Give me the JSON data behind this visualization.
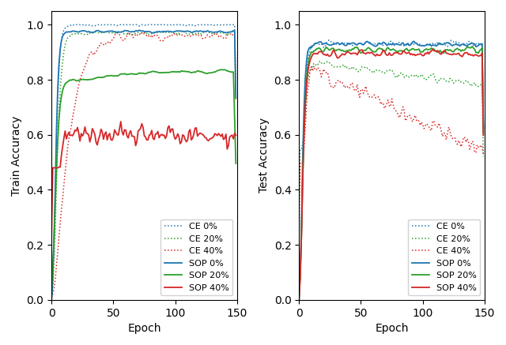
{
  "colors": {
    "blue": "#1f77b4",
    "green": "#2ca02c",
    "red": "#d62728"
  },
  "xlim": [
    0,
    150
  ],
  "ylim": [
    0.0,
    1.05
  ],
  "xlabel": "Epoch",
  "ylabel_left": "Train Accuracy",
  "ylabel_right": "Test Accuracy",
  "legend_entries": [
    "CE 0%",
    "CE 20%",
    "CE 40%",
    "SOP 0%",
    "SOP 20%",
    "SOP 40%"
  ],
  "figsize": [
    6.4,
    4.37
  ],
  "dpi": 100
}
